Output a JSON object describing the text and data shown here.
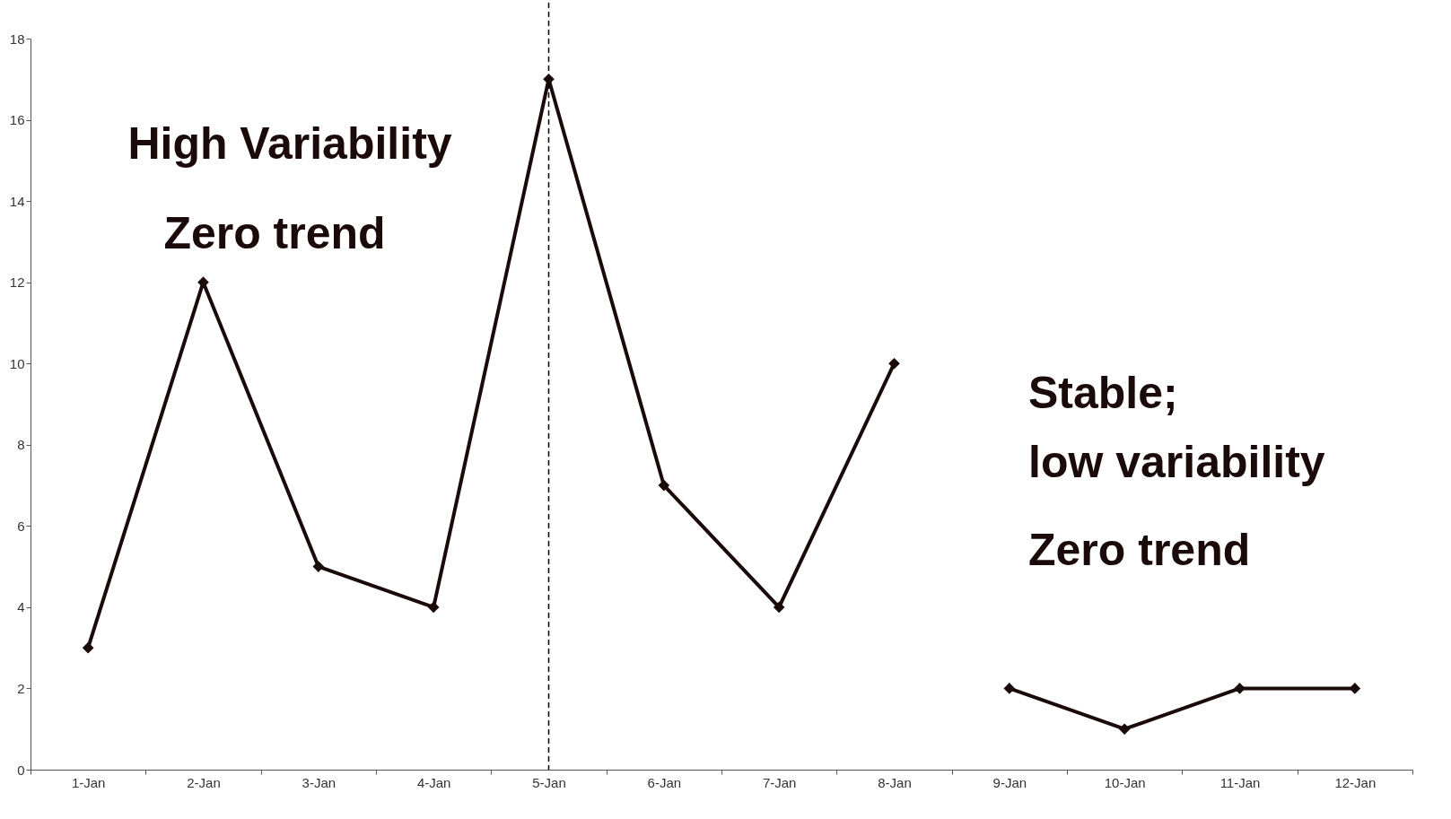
{
  "chart_data": {
    "type": "line",
    "categories": [
      "1-Jan",
      "2-Jan",
      "3-Jan",
      "4-Jan",
      "5-Jan",
      "6-Jan",
      "7-Jan",
      "8-Jan",
      "9-Jan",
      "10-Jan",
      "11-Jan",
      "12-Jan"
    ],
    "series": [
      {
        "color": "#1a0a0a",
        "values": [
          3,
          12,
          5,
          4,
          17,
          7,
          4,
          10,
          null,
          null,
          null,
          null
        ]
      },
      {
        "color": "#1a0a0a",
        "values": [
          null,
          null,
          null,
          null,
          null,
          null,
          null,
          null,
          2,
          1,
          2,
          2
        ]
      }
    ],
    "ylim": [
      0,
      18
    ],
    "yticks": [
      0,
      2,
      4,
      6,
      8,
      10,
      12,
      14,
      16,
      18
    ],
    "ref_lines": [
      {
        "axis": "x",
        "value": "5-Jan",
        "color": "#000000",
        "line_style": "dashed"
      }
    ],
    "annotations": [
      "High Variability",
      "Zero trend",
      "Stable;",
      "low variability",
      "Zero trend"
    ],
    "marker": "diamond",
    "line_style": "solid",
    "grid": false,
    "legend": false
  }
}
